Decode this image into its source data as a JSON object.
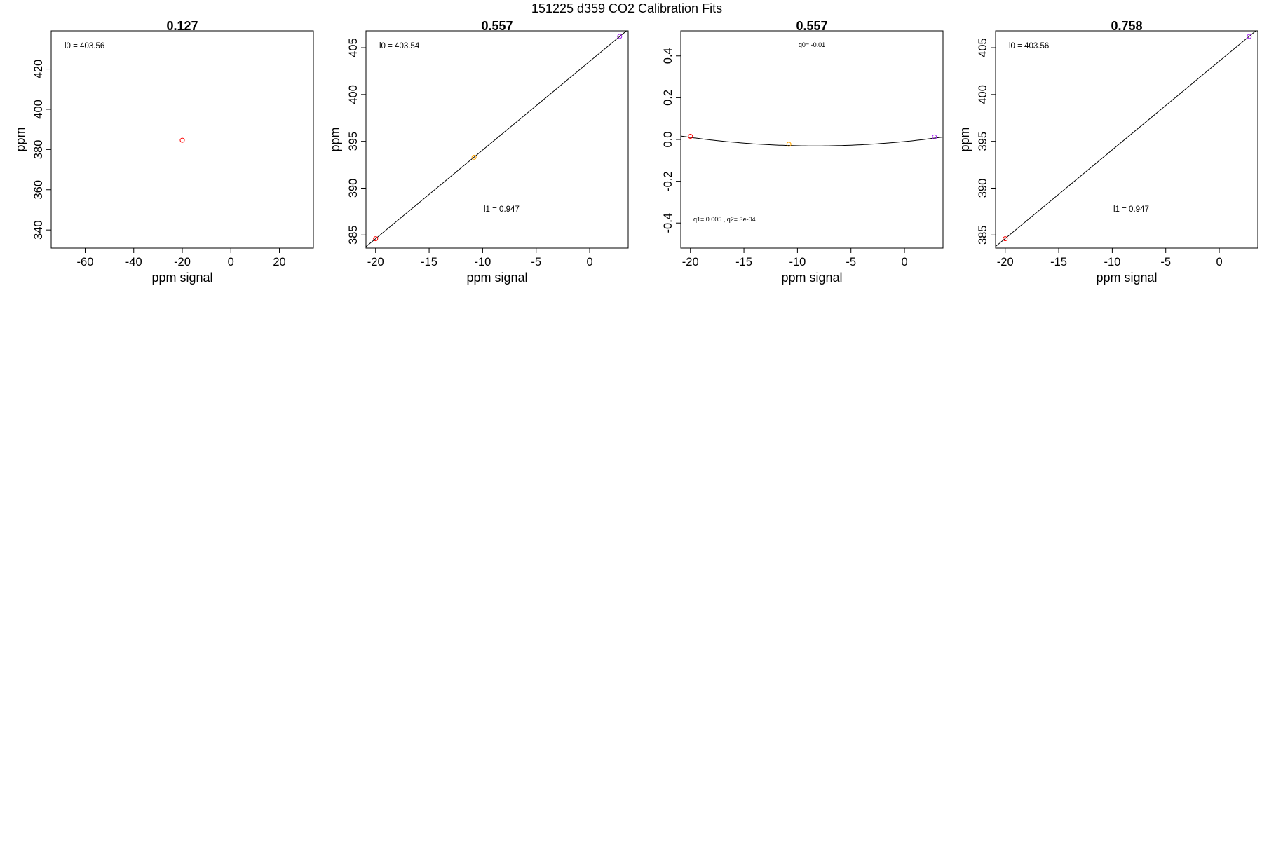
{
  "figure": {
    "title": "151225   d359   CO2 Calibration Fits"
  },
  "chart_data": [
    {
      "type": "scatter",
      "title": "0.127",
      "xlabel": "ppm signal",
      "ylabel": "ppm",
      "xlim": [
        -74,
        34
      ],
      "ylim": [
        331,
        439
      ],
      "xticks": [
        -60,
        -40,
        -20,
        0,
        20
      ],
      "yticks": [
        340,
        360,
        380,
        400,
        420
      ],
      "points": [
        {
          "x": -20,
          "y": 384.6,
          "color": "#ff0000"
        }
      ],
      "fit": null,
      "annotations": [
        {
          "id": "a0",
          "text": "l0 =  403.56",
          "small": false
        }
      ]
    },
    {
      "type": "scatter",
      "title": "0.557",
      "xlabel": "ppm signal",
      "ylabel": "ppm",
      "xlim": [
        -20.9,
        3.6
      ],
      "ylim": [
        383.6,
        406.8
      ],
      "xticks": [
        -20,
        -15,
        -10,
        -5,
        0
      ],
      "yticks": [
        385,
        390,
        395,
        400,
        405
      ],
      "points": [
        {
          "x": -20,
          "y": 384.6,
          "color": "#ff0000"
        },
        {
          "x": -10.8,
          "y": 393.3,
          "color": "#ffa500"
        },
        {
          "x": 2.8,
          "y": 406.2,
          "color": "#a020f0"
        }
      ],
      "fit": {
        "type": "linear",
        "intercept": 403.54,
        "slope": 0.947
      },
      "annotations": [
        {
          "id": "a0",
          "text": "l0 =  403.54",
          "small": false
        },
        {
          "id": "a1",
          "text": "l1 =  0.947",
          "small": false
        }
      ]
    },
    {
      "type": "scatter",
      "title": "0.557",
      "xlabel": "ppm signal",
      "ylabel": "",
      "xlim": [
        -20.9,
        3.6
      ],
      "ylim": [
        -0.52,
        0.52
      ],
      "xticks": [
        -20,
        -15,
        -10,
        -5,
        0
      ],
      "yticks": [
        -0.4,
        -0.2,
        0.0,
        0.2,
        0.4
      ],
      "points": [
        {
          "x": -20,
          "y": 0.015,
          "color": "#ff0000"
        },
        {
          "x": -10.8,
          "y": -0.023,
          "color": "#ffa500"
        },
        {
          "x": 2.8,
          "y": 0.012,
          "color": "#a020f0"
        }
      ],
      "fit": {
        "type": "quadratic",
        "q0": -0.01,
        "q1": 0.005,
        "q2": 0.0003
      },
      "annotations": [
        {
          "id": "a0",
          "text": "q0= -0.01",
          "small": true
        },
        {
          "id": "a1",
          "text": "q1= 0.005 , q2= 3e-04",
          "small": true
        }
      ]
    },
    {
      "type": "scatter",
      "title": "0.758",
      "xlabel": "ppm signal",
      "ylabel": "ppm",
      "xlim": [
        -20.9,
        3.6
      ],
      "ylim": [
        383.6,
        406.8
      ],
      "xticks": [
        -20,
        -15,
        -10,
        -5,
        0
      ],
      "yticks": [
        385,
        390,
        395,
        400,
        405
      ],
      "points": [
        {
          "x": -20,
          "y": 384.6,
          "color": "#ff0000"
        },
        {
          "x": 2.8,
          "y": 406.2,
          "color": "#a020f0"
        }
      ],
      "fit": {
        "type": "linear",
        "intercept": 403.56,
        "slope": 0.947
      },
      "annotations": [
        {
          "id": "a0",
          "text": "l0 =  403.56",
          "small": false
        },
        {
          "id": "a1",
          "text": "l1 =  0.947",
          "small": false
        }
      ]
    }
  ]
}
